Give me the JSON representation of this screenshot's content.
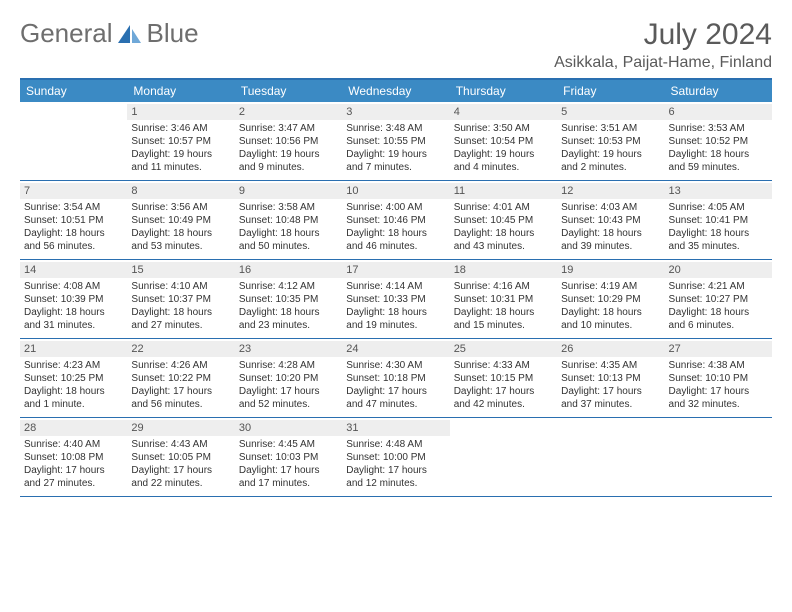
{
  "logo": {
    "text1": "General",
    "text2": "Blue"
  },
  "title": "July 2024",
  "location": "Asikkala, Paijat-Hame, Finland",
  "colors": {
    "header_bg": "#3b8ac4",
    "header_text": "#ffffff",
    "border": "#2a6fb0",
    "daynum_bg": "#eeeeee",
    "text": "#333333",
    "title_text": "#5a5a5a",
    "logo_text": "#6e6e6e",
    "logo_accent": "#2a6fb0"
  },
  "day_headers": [
    "Sunday",
    "Monday",
    "Tuesday",
    "Wednesday",
    "Thursday",
    "Friday",
    "Saturday"
  ],
  "weeks": [
    [
      {
        "num": "",
        "lines": []
      },
      {
        "num": "1",
        "lines": [
          "Sunrise: 3:46 AM",
          "Sunset: 10:57 PM",
          "Daylight: 19 hours and 11 minutes."
        ]
      },
      {
        "num": "2",
        "lines": [
          "Sunrise: 3:47 AM",
          "Sunset: 10:56 PM",
          "Daylight: 19 hours and 9 minutes."
        ]
      },
      {
        "num": "3",
        "lines": [
          "Sunrise: 3:48 AM",
          "Sunset: 10:55 PM",
          "Daylight: 19 hours and 7 minutes."
        ]
      },
      {
        "num": "4",
        "lines": [
          "Sunrise: 3:50 AM",
          "Sunset: 10:54 PM",
          "Daylight: 19 hours and 4 minutes."
        ]
      },
      {
        "num": "5",
        "lines": [
          "Sunrise: 3:51 AM",
          "Sunset: 10:53 PM",
          "Daylight: 19 hours and 2 minutes."
        ]
      },
      {
        "num": "6",
        "lines": [
          "Sunrise: 3:53 AM",
          "Sunset: 10:52 PM",
          "Daylight: 18 hours and 59 minutes."
        ]
      }
    ],
    [
      {
        "num": "7",
        "lines": [
          "Sunrise: 3:54 AM",
          "Sunset: 10:51 PM",
          "Daylight: 18 hours and 56 minutes."
        ]
      },
      {
        "num": "8",
        "lines": [
          "Sunrise: 3:56 AM",
          "Sunset: 10:49 PM",
          "Daylight: 18 hours and 53 minutes."
        ]
      },
      {
        "num": "9",
        "lines": [
          "Sunrise: 3:58 AM",
          "Sunset: 10:48 PM",
          "Daylight: 18 hours and 50 minutes."
        ]
      },
      {
        "num": "10",
        "lines": [
          "Sunrise: 4:00 AM",
          "Sunset: 10:46 PM",
          "Daylight: 18 hours and 46 minutes."
        ]
      },
      {
        "num": "11",
        "lines": [
          "Sunrise: 4:01 AM",
          "Sunset: 10:45 PM",
          "Daylight: 18 hours and 43 minutes."
        ]
      },
      {
        "num": "12",
        "lines": [
          "Sunrise: 4:03 AM",
          "Sunset: 10:43 PM",
          "Daylight: 18 hours and 39 minutes."
        ]
      },
      {
        "num": "13",
        "lines": [
          "Sunrise: 4:05 AM",
          "Sunset: 10:41 PM",
          "Daylight: 18 hours and 35 minutes."
        ]
      }
    ],
    [
      {
        "num": "14",
        "lines": [
          "Sunrise: 4:08 AM",
          "Sunset: 10:39 PM",
          "Daylight: 18 hours and 31 minutes."
        ]
      },
      {
        "num": "15",
        "lines": [
          "Sunrise: 4:10 AM",
          "Sunset: 10:37 PM",
          "Daylight: 18 hours and 27 minutes."
        ]
      },
      {
        "num": "16",
        "lines": [
          "Sunrise: 4:12 AM",
          "Sunset: 10:35 PM",
          "Daylight: 18 hours and 23 minutes."
        ]
      },
      {
        "num": "17",
        "lines": [
          "Sunrise: 4:14 AM",
          "Sunset: 10:33 PM",
          "Daylight: 18 hours and 19 minutes."
        ]
      },
      {
        "num": "18",
        "lines": [
          "Sunrise: 4:16 AM",
          "Sunset: 10:31 PM",
          "Daylight: 18 hours and 15 minutes."
        ]
      },
      {
        "num": "19",
        "lines": [
          "Sunrise: 4:19 AM",
          "Sunset: 10:29 PM",
          "Daylight: 18 hours and 10 minutes."
        ]
      },
      {
        "num": "20",
        "lines": [
          "Sunrise: 4:21 AM",
          "Sunset: 10:27 PM",
          "Daylight: 18 hours and 6 minutes."
        ]
      }
    ],
    [
      {
        "num": "21",
        "lines": [
          "Sunrise: 4:23 AM",
          "Sunset: 10:25 PM",
          "Daylight: 18 hours and 1 minute."
        ]
      },
      {
        "num": "22",
        "lines": [
          "Sunrise: 4:26 AM",
          "Sunset: 10:22 PM",
          "Daylight: 17 hours and 56 minutes."
        ]
      },
      {
        "num": "23",
        "lines": [
          "Sunrise: 4:28 AM",
          "Sunset: 10:20 PM",
          "Daylight: 17 hours and 52 minutes."
        ]
      },
      {
        "num": "24",
        "lines": [
          "Sunrise: 4:30 AM",
          "Sunset: 10:18 PM",
          "Daylight: 17 hours and 47 minutes."
        ]
      },
      {
        "num": "25",
        "lines": [
          "Sunrise: 4:33 AM",
          "Sunset: 10:15 PM",
          "Daylight: 17 hours and 42 minutes."
        ]
      },
      {
        "num": "26",
        "lines": [
          "Sunrise: 4:35 AM",
          "Sunset: 10:13 PM",
          "Daylight: 17 hours and 37 minutes."
        ]
      },
      {
        "num": "27",
        "lines": [
          "Sunrise: 4:38 AM",
          "Sunset: 10:10 PM",
          "Daylight: 17 hours and 32 minutes."
        ]
      }
    ],
    [
      {
        "num": "28",
        "lines": [
          "Sunrise: 4:40 AM",
          "Sunset: 10:08 PM",
          "Daylight: 17 hours and 27 minutes."
        ]
      },
      {
        "num": "29",
        "lines": [
          "Sunrise: 4:43 AM",
          "Sunset: 10:05 PM",
          "Daylight: 17 hours and 22 minutes."
        ]
      },
      {
        "num": "30",
        "lines": [
          "Sunrise: 4:45 AM",
          "Sunset: 10:03 PM",
          "Daylight: 17 hours and 17 minutes."
        ]
      },
      {
        "num": "31",
        "lines": [
          "Sunrise: 4:48 AM",
          "Sunset: 10:00 PM",
          "Daylight: 17 hours and 12 minutes."
        ]
      },
      {
        "num": "",
        "lines": []
      },
      {
        "num": "",
        "lines": []
      },
      {
        "num": "",
        "lines": []
      }
    ]
  ]
}
